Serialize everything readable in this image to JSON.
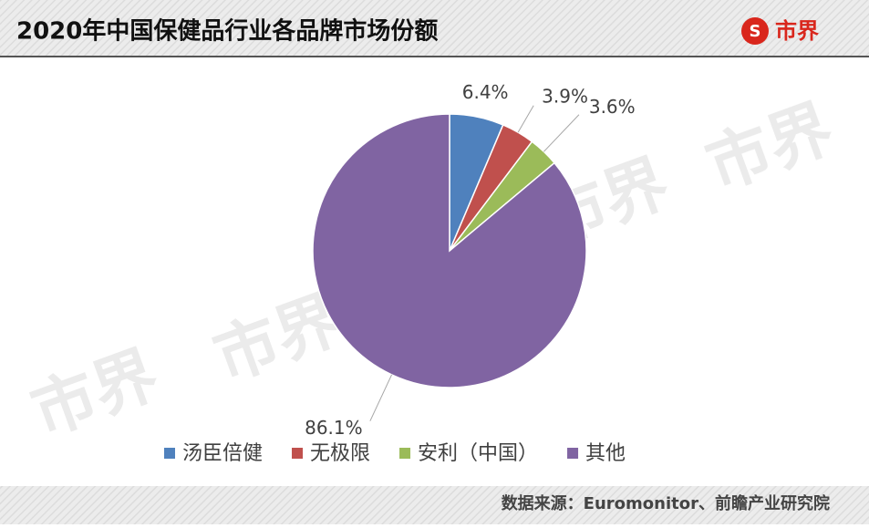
{
  "header": {
    "title": "2020年中国保健品行业各品牌市场份额",
    "logo": "市界"
  },
  "chart_data": {
    "type": "pie",
    "categories": [
      "汤臣倍健",
      "无极限",
      "安利（中国）",
      "其他"
    ],
    "values": [
      6.4,
      3.9,
      3.6,
      86.1
    ],
    "value_labels": [
      "6.4%",
      "3.9%",
      "3.6%",
      "86.1%"
    ],
    "colors": [
      "#4f81bd",
      "#c0504d",
      "#9bbb59",
      "#8064a2"
    ],
    "legend": "bottom"
  },
  "footer": {
    "source": "数据来源：Euromonitor、前瞻产业研究院"
  }
}
